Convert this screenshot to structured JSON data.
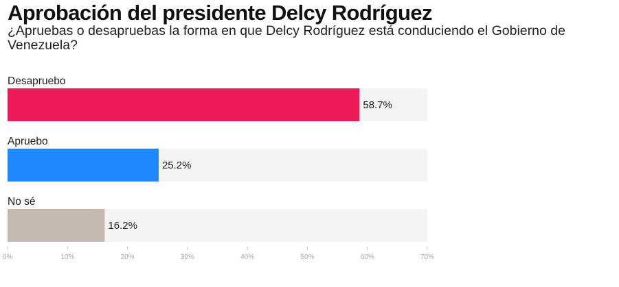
{
  "header": {
    "title": "Aprobación del presidente Delcy Rodríguez",
    "subtitle": "¿Apruebas o desapruebas la forma en que Delcy Rodríguez está conduciendo el Gobierno de Venezuela?"
  },
  "chart_data": {
    "type": "bar",
    "orientation": "horizontal",
    "categories": [
      "Desapruebo",
      "Apruebo",
      "No sé"
    ],
    "values": [
      58.7,
      25.2,
      16.2
    ],
    "value_labels": [
      "58.7%",
      "25.2%",
      "16.2%"
    ],
    "colors": [
      "#ee1b5a",
      "#2188ff",
      "#c6b9b1"
    ],
    "track_color": "#f4f4f2",
    "title": "Aprobación del presidente Delcy Rodríguez",
    "subtitle": "¿Apruebas o desapruebas la forma en que Delcy Rodríguez está conduciendo el Gobierno de Venezuela?",
    "xlim": [
      0,
      70
    ],
    "xticks": [
      0,
      10,
      20,
      30,
      40,
      50,
      60,
      70
    ],
    "xtick_labels": [
      "0%",
      "10%",
      "20%",
      "30%",
      "40%",
      "50%",
      "60%",
      "70%"
    ],
    "grid": false,
    "legend": "none"
  }
}
